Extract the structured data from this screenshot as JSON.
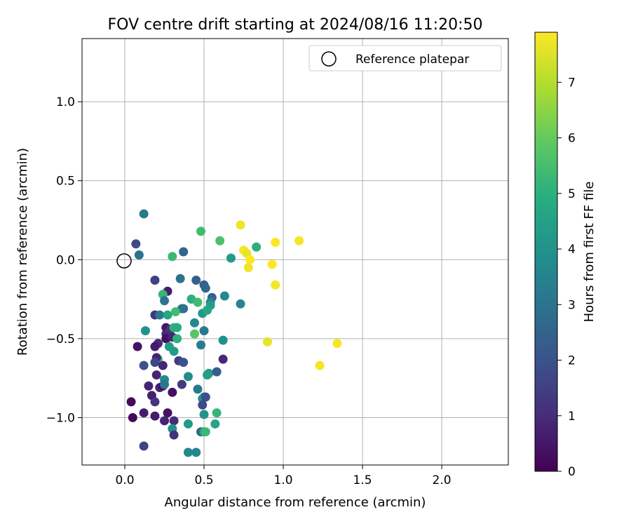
{
  "chart_data": {
    "type": "scatter",
    "title": "FOV centre drift starting at 2024/08/16 11:20:50",
    "xlabel": "Angular distance from reference (arcmin)",
    "ylabel": "Rotation from reference (arcmin)",
    "xlim": [
      -0.27,
      2.42
    ],
    "ylim": [
      -1.3,
      1.4
    ],
    "xticks": [
      0.0,
      0.5,
      1.0,
      1.5,
      2.0
    ],
    "xtick_labels": [
      "0.0",
      "0.5",
      "1.0",
      "1.5",
      "2.0"
    ],
    "yticks": [
      -1.0,
      -0.5,
      0.0,
      0.5,
      1.0
    ],
    "ytick_labels": [
      "−1.0",
      "−0.5",
      "0.0",
      "0.5",
      "1.0"
    ],
    "grid": true,
    "legend": {
      "position": "upper right",
      "label": "Reference platepar"
    },
    "reference": {
      "x": 0.0,
      "y": 0.0
    },
    "colorbar": {
      "label": "Hours from first FF file",
      "range": [
        0,
        7.9
      ],
      "ticks": [
        0,
        1,
        2,
        3,
        4,
        5,
        6,
        7
      ],
      "tick_labels": [
        "0",
        "1",
        "2",
        "3",
        "4",
        "5",
        "6",
        "7"
      ],
      "colormap": "viridis"
    },
    "points": [
      [
        0.12,
        0.29,
        3.2
      ],
      [
        0.07,
        0.1,
        1.8
      ],
      [
        0.09,
        0.03,
        3.0
      ],
      [
        0.37,
        0.05,
        2.6
      ],
      [
        0.19,
        -0.13,
        1.5
      ],
      [
        0.35,
        -0.12,
        3.0
      ],
      [
        0.45,
        -0.13,
        2.5
      ],
      [
        0.5,
        -0.16,
        2.3
      ],
      [
        0.51,
        -0.18,
        2.6
      ],
      [
        0.27,
        -0.2,
        0.6
      ],
      [
        0.24,
        -0.22,
        5.2
      ],
      [
        0.25,
        -0.26,
        3.0
      ],
      [
        0.42,
        -0.25,
        5.0
      ],
      [
        0.46,
        -0.27,
        5.4
      ],
      [
        0.55,
        -0.24,
        2.5
      ],
      [
        0.54,
        -0.27,
        3.6
      ],
      [
        0.54,
        -0.29,
        4.4
      ],
      [
        0.63,
        -0.23,
        3.7
      ],
      [
        0.73,
        -0.28,
        3.6
      ],
      [
        0.37,
        -0.31,
        2.7
      ],
      [
        0.36,
        -0.31,
        3.0
      ],
      [
        0.19,
        -0.35,
        1.2
      ],
      [
        0.22,
        -0.35,
        3.2
      ],
      [
        0.27,
        -0.35,
        4.7
      ],
      [
        0.32,
        -0.33,
        5.4
      ],
      [
        0.49,
        -0.34,
        4.2
      ],
      [
        0.52,
        -0.32,
        4.7
      ],
      [
        0.13,
        -0.45,
        4.0
      ],
      [
        0.26,
        -0.43,
        0.5
      ],
      [
        0.26,
        -0.47,
        0.9
      ],
      [
        0.29,
        -0.44,
        1.3
      ],
      [
        0.31,
        -0.43,
        5.1
      ],
      [
        0.33,
        -0.43,
        4.9
      ],
      [
        0.44,
        -0.4,
        3.7
      ],
      [
        0.5,
        -0.45,
        3.2
      ],
      [
        0.44,
        -0.47,
        5.8
      ],
      [
        0.26,
        -0.5,
        0.3
      ],
      [
        0.3,
        -0.49,
        0.8
      ],
      [
        0.33,
        -0.5,
        5.0
      ],
      [
        0.21,
        -0.53,
        1.0
      ],
      [
        0.19,
        -0.55,
        0.6
      ],
      [
        0.08,
        -0.55,
        0.4
      ],
      [
        0.28,
        -0.55,
        4.4
      ],
      [
        0.31,
        -0.58,
        4.3
      ],
      [
        0.48,
        -0.54,
        3.3
      ],
      [
        0.62,
        -0.51,
        4.0
      ],
      [
        0.21,
        -0.63,
        5.3
      ],
      [
        0.2,
        -0.62,
        0.8
      ],
      [
        0.12,
        -0.67,
        2.0
      ],
      [
        0.19,
        -0.65,
        1.7
      ],
      [
        0.24,
        -0.67,
        0.9
      ],
      [
        0.34,
        -0.64,
        1.4
      ],
      [
        0.37,
        -0.65,
        2.0
      ],
      [
        0.62,
        -0.63,
        0.9
      ],
      [
        0.2,
        -0.73,
        0.8
      ],
      [
        0.25,
        -0.76,
        3.7
      ],
      [
        0.4,
        -0.74,
        3.8
      ],
      [
        0.53,
        -0.72,
        4.2
      ],
      [
        0.52,
        -0.73,
        4.4
      ],
      [
        0.58,
        -0.71,
        2.3
      ],
      [
        0.15,
        -0.8,
        0.8
      ],
      [
        0.22,
        -0.81,
        0.9
      ],
      [
        0.24,
        -0.8,
        0.3
      ],
      [
        0.25,
        -0.79,
        3.1
      ],
      [
        0.3,
        -0.84,
        0.4
      ],
      [
        0.36,
        -0.79,
        1.4
      ],
      [
        0.46,
        -0.82,
        3.2
      ],
      [
        0.17,
        -0.86,
        0.7
      ],
      [
        0.19,
        -0.9,
        1.2
      ],
      [
        0.04,
        -0.9,
        0.2
      ],
      [
        0.5,
        -0.87,
        3.6
      ],
      [
        0.49,
        -0.88,
        4.0
      ],
      [
        0.51,
        -0.87,
        1.9
      ],
      [
        0.49,
        -0.92,
        1.8
      ],
      [
        0.12,
        -0.97,
        0.6
      ],
      [
        0.27,
        -0.97,
        0.4
      ],
      [
        0.05,
        -1.0,
        0.2
      ],
      [
        0.19,
        -0.99,
        0.6
      ],
      [
        0.31,
        -1.02,
        1.0
      ],
      [
        0.25,
        -1.02,
        0.8
      ],
      [
        0.5,
        -0.98,
        4.1
      ],
      [
        0.58,
        -0.97,
        5.2
      ],
      [
        0.4,
        -1.04,
        4.2
      ],
      [
        0.3,
        -1.07,
        4.0
      ],
      [
        0.57,
        -1.04,
        4.6
      ],
      [
        0.48,
        -1.09,
        2.5
      ],
      [
        0.5,
        -1.09,
        4.5
      ],
      [
        0.51,
        -1.09,
        5.3
      ],
      [
        0.31,
        -1.11,
        1.2
      ],
      [
        0.12,
        -1.18,
        1.6
      ],
      [
        0.4,
        -1.22,
        3.7
      ],
      [
        0.45,
        -1.22,
        3.6
      ],
      [
        0.48,
        0.18,
        5.4
      ],
      [
        0.6,
        0.12,
        5.6
      ],
      [
        0.3,
        0.02,
        5.3
      ],
      [
        0.67,
        0.01,
        4.3
      ],
      [
        0.83,
        0.08,
        5.0
      ],
      [
        0.73,
        0.22,
        7.7
      ],
      [
        0.75,
        0.06,
        7.8
      ],
      [
        0.77,
        0.04,
        7.6
      ],
      [
        0.79,
        0.0,
        7.9
      ],
      [
        0.78,
        -0.05,
        7.7
      ],
      [
        0.95,
        0.11,
        7.9
      ],
      [
        1.1,
        0.12,
        7.8
      ],
      [
        0.93,
        -0.03,
        7.9
      ],
      [
        0.95,
        -0.16,
        7.8
      ],
      [
        0.9,
        -0.52,
        7.6
      ],
      [
        1.34,
        -0.53,
        7.8
      ],
      [
        1.23,
        -0.67,
        7.8
      ]
    ]
  }
}
